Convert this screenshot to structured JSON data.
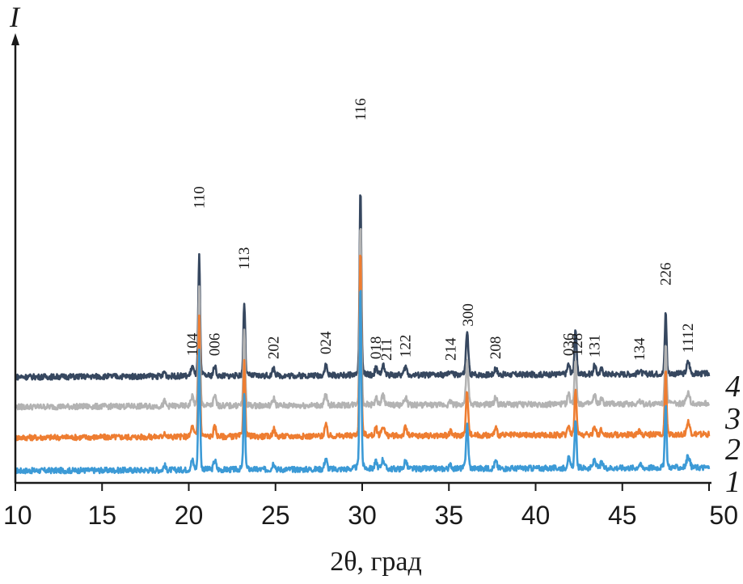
{
  "chart_data": {
    "type": "line",
    "ylabel": "I",
    "xlabel": "2θ, град",
    "xlim": [
      10,
      50
    ],
    "x_ticks": [
      "10",
      "15",
      "20",
      "25",
      "30",
      "35",
      "40",
      "45",
      "50"
    ],
    "grid": false,
    "legend": "curve numbers at right end",
    "peak_labels": [
      {
        "text": "104",
        "x": 20.2
      },
      {
        "text": "110",
        "x": 20.6
      },
      {
        "text": "006",
        "x": 21.5
      },
      {
        "text": "113",
        "x": 23.2
      },
      {
        "text": "202",
        "x": 24.9
      },
      {
        "text": "024",
        "x": 27.9
      },
      {
        "text": "116",
        "x": 29.9
      },
      {
        "text": "018",
        "x": 30.8
      },
      {
        "text": "211",
        "x": 31.4
      },
      {
        "text": "122",
        "x": 32.5
      },
      {
        "text": "214",
        "x": 35.1
      },
      {
        "text": "300",
        "x": 36.1
      },
      {
        "text": "208",
        "x": 37.7
      },
      {
        "text": "036",
        "x": 41.9
      },
      {
        "text": "128",
        "x": 42.4
      },
      {
        "text": "131",
        "x": 43.4
      },
      {
        "text": "134",
        "x": 46.0
      },
      {
        "text": "226",
        "x": 47.5
      },
      {
        "text": "1112",
        "x": 48.8
      }
    ],
    "peaks": [
      {
        "x": 18.6,
        "h": 0.04,
        "w": 0.08
      },
      {
        "x": 20.2,
        "h": 0.08,
        "w": 0.1
      },
      {
        "x": 20.6,
        "h": 1.0,
        "w": 0.07
      },
      {
        "x": 21.5,
        "h": 0.08,
        "w": 0.1
      },
      {
        "x": 23.2,
        "h": 0.62,
        "w": 0.07
      },
      {
        "x": 24.9,
        "h": 0.06,
        "w": 0.1
      },
      {
        "x": 27.9,
        "h": 0.09,
        "w": 0.1
      },
      {
        "x": 29.9,
        "h": 1.55,
        "w": 0.07
      },
      {
        "x": 30.8,
        "h": 0.06,
        "w": 0.1
      },
      {
        "x": 31.2,
        "h": 0.08,
        "w": 0.12
      },
      {
        "x": 32.5,
        "h": 0.07,
        "w": 0.1
      },
      {
        "x": 35.1,
        "h": 0.03,
        "w": 0.1
      },
      {
        "x": 36.05,
        "h": 0.36,
        "w": 0.09
      },
      {
        "x": 37.7,
        "h": 0.06,
        "w": 0.1
      },
      {
        "x": 41.9,
        "h": 0.08,
        "w": 0.1
      },
      {
        "x": 42.3,
        "h": 0.38,
        "w": 0.08
      },
      {
        "x": 43.4,
        "h": 0.07,
        "w": 0.1
      },
      {
        "x": 43.8,
        "h": 0.04,
        "w": 0.1
      },
      {
        "x": 46.0,
        "h": 0.03,
        "w": 0.1
      },
      {
        "x": 47.5,
        "h": 0.52,
        "w": 0.07
      },
      {
        "x": 48.8,
        "h": 0.1,
        "w": 0.12
      }
    ],
    "series": [
      {
        "name": "1",
        "color": "#3c9ad6",
        "scale": 1.0
      },
      {
        "name": "2",
        "color": "#ee7d31",
        "scale": 1.0
      },
      {
        "name": "3",
        "color": "#b3b3b3",
        "scale": 0.98
      },
      {
        "name": "4",
        "color": "#36475f",
        "scale": 0.99
      }
    ]
  }
}
